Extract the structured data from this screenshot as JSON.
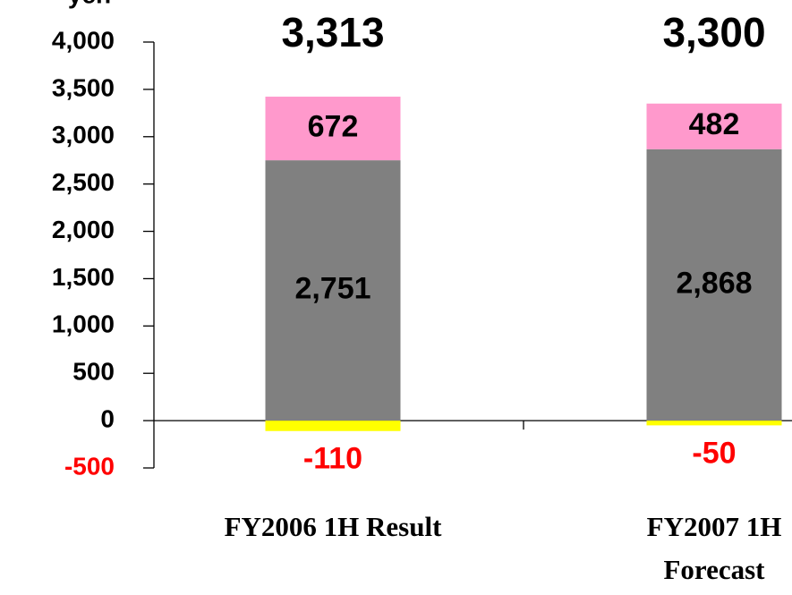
{
  "chart_data": {
    "type": "stacked_bar",
    "y_label": "yen",
    "categories": [
      [
        "FY2006 1H  Result"
      ],
      [
        "FY2007 1H",
        "Forecast"
      ]
    ],
    "series": [
      {
        "color": "#808080",
        "values": [
          2751,
          2868
        ],
        "value_labels": [
          "2,751",
          "2,868"
        ]
      },
      {
        "color": "#ff99cc",
        "values": [
          672,
          482
        ]
      },
      {
        "color": "#ffff00",
        "values": [
          -110,
          -50
        ]
      }
    ],
    "totals": [
      3313,
      3300
    ],
    "total_labels": [
      "3,313",
      "3,300"
    ],
    "ylim": [
      -500,
      4000
    ],
    "yticks": [
      -500,
      0,
      500,
      {
        "value": 1000,
        "label": "1,000"
      },
      {
        "value": 1500,
        "label": "1,500"
      },
      {
        "value": 2000,
        "label": "2,000"
      },
      {
        "value": 2500,
        "label": "2,500"
      },
      {
        "value": 3000,
        "label": "3,000"
      },
      {
        "value": 3500,
        "label": "3,500"
      },
      {
        "value": 4000,
        "label": "4,000"
      }
    ],
    "negative_color": "#ff0000"
  }
}
